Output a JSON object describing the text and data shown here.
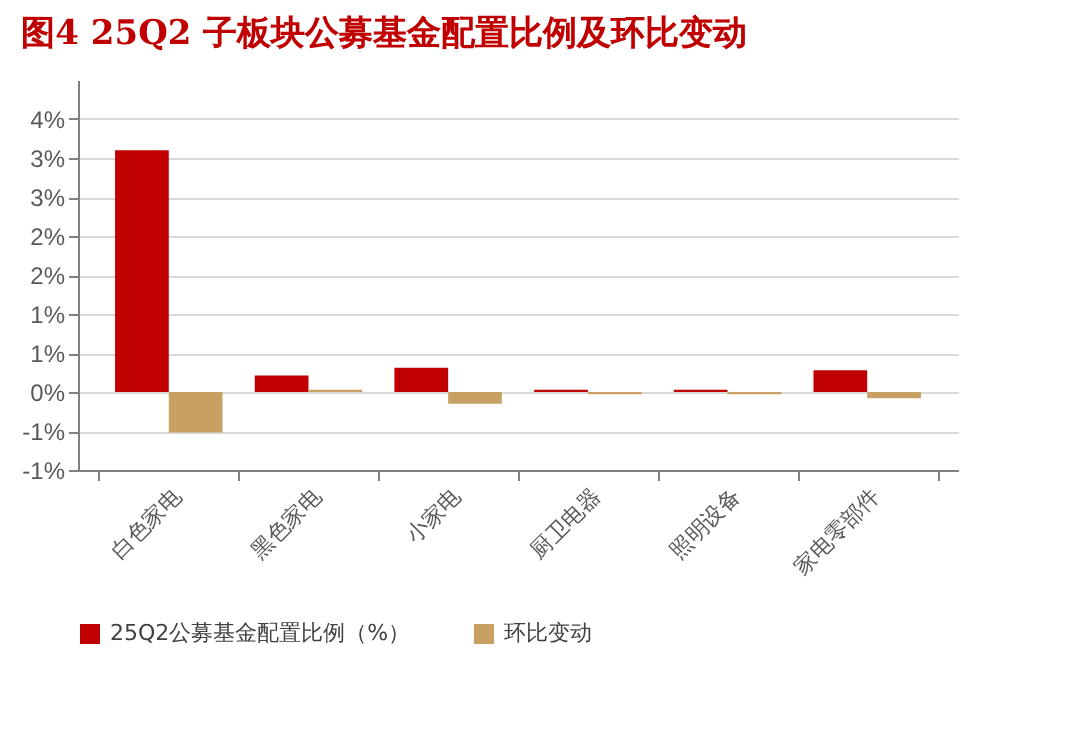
{
  "chart_data": {
    "type": "bar",
    "title": "图4   25Q2 子板块公募基金配置比例及环比变动",
    "categories": [
      "白色家电",
      "黑色家电",
      "小家电",
      "厨卫电器",
      "照明设备",
      "家电零部件"
    ],
    "series": [
      {
        "name": "25Q2公募基金配置比例（%）",
        "color": "#c00000",
        "values": [
          3.1,
          0.21,
          0.31,
          0.03,
          0.03,
          0.28
        ]
      },
      {
        "name": "环比变动",
        "color": "#c9a063",
        "values": [
          -0.52,
          0.03,
          -0.15,
          -0.03,
          -0.03,
          -0.08
        ]
      }
    ],
    "ylim": [
      -1.0,
      4.0
    ],
    "yticks": [
      {
        "value": -1.0,
        "label": "-1%"
      },
      {
        "value": -0.5,
        "label": "-1%"
      },
      {
        "value": 0,
        "label": "0%"
      },
      {
        "value": 0.5,
        "label": "1%"
      },
      {
        "value": 1.0,
        "label": "1%"
      },
      {
        "value": 1.5,
        "label": "2%"
      },
      {
        "value": 2.0,
        "label": "2%"
      },
      {
        "value": 2.5,
        "label": "3%"
      },
      {
        "value": 3.0,
        "label": "3%"
      },
      {
        "value": 3.5,
        "label": "4%"
      }
    ],
    "grid": "y",
    "legend": "bottom"
  }
}
